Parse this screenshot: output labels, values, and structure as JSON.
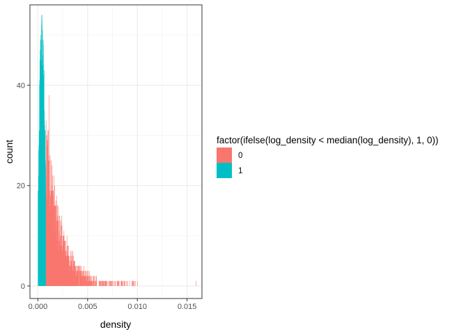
{
  "chart_data": {
    "type": "bar",
    "title": "",
    "xlabel": "density",
    "ylabel": "count",
    "xlim": [
      -0.0008,
      0.0165
    ],
    "ylim": [
      -2.5,
      56
    ],
    "x_ticks": [
      0.0,
      0.005,
      0.01,
      0.015
    ],
    "x_tick_labels": [
      "0.000",
      "0.005",
      "0.010",
      "0.015"
    ],
    "y_ticks": [
      0,
      20,
      40
    ],
    "y_tick_labels": [
      "0",
      "20",
      "40"
    ],
    "grid": true,
    "bin_width": 2e-05,
    "legend": {
      "title": "factor(ifelse(log_density < median(log_density), 1, 0))",
      "placement": "right"
    },
    "series": [
      {
        "name": "0",
        "color": "#F8766D",
        "peak": [
          [
            0.0008,
            24
          ],
          [
            0.00085,
            20
          ],
          [
            0.0009,
            23
          ],
          [
            0.00095,
            27
          ],
          [
            0.001,
            25
          ],
          [
            0.0011,
            27
          ],
          [
            0.0012,
            22
          ],
          [
            0.0013,
            20
          ],
          [
            0.0014,
            18
          ],
          [
            0.0015,
            17
          ],
          [
            0.0016,
            15
          ],
          [
            0.0017,
            14
          ],
          [
            0.0018,
            13
          ],
          [
            0.002,
            11
          ],
          [
            0.0022,
            10
          ],
          [
            0.0024,
            9
          ],
          [
            0.0026,
            8
          ],
          [
            0.0028,
            7
          ],
          [
            0.003,
            6
          ],
          [
            0.0033,
            5
          ],
          [
            0.0036,
            4
          ],
          [
            0.004,
            3
          ],
          [
            0.0045,
            2.5
          ],
          [
            0.005,
            2
          ],
          [
            0.0055,
            1.5
          ],
          [
            0.006,
            1.2
          ],
          [
            0.007,
            0.9
          ],
          [
            0.008,
            0.6
          ],
          [
            0.01,
            0.3
          ]
        ],
        "ones": [
          0.0055,
          0.0058,
          0.0062,
          0.0065,
          0.0068,
          0.0072,
          0.0078,
          0.0081,
          0.0084,
          0.0087,
          0.0092,
          0.0096,
          0.0098,
          0.01,
          0.0159
        ]
      },
      {
        "name": "1",
        "color": "#00BFC4",
        "peak": [
          [
            0.0,
            18
          ],
          [
            5e-05,
            22
          ],
          [
            0.0001,
            30
          ],
          [
            0.00015,
            38
          ],
          [
            0.0002,
            44
          ],
          [
            0.00025,
            47
          ],
          [
            0.0003,
            48
          ],
          [
            0.00035,
            49
          ],
          [
            0.0004,
            50
          ],
          [
            0.00045,
            48
          ],
          [
            0.0005,
            46
          ],
          [
            0.00055,
            43
          ],
          [
            0.0006,
            40
          ],
          [
            0.00065,
            35
          ],
          [
            0.0007,
            30
          ],
          [
            0.00075,
            24
          ],
          [
            0.00078,
            20
          ],
          [
            0.0008,
            18
          ]
        ]
      }
    ],
    "max_count": 53
  }
}
